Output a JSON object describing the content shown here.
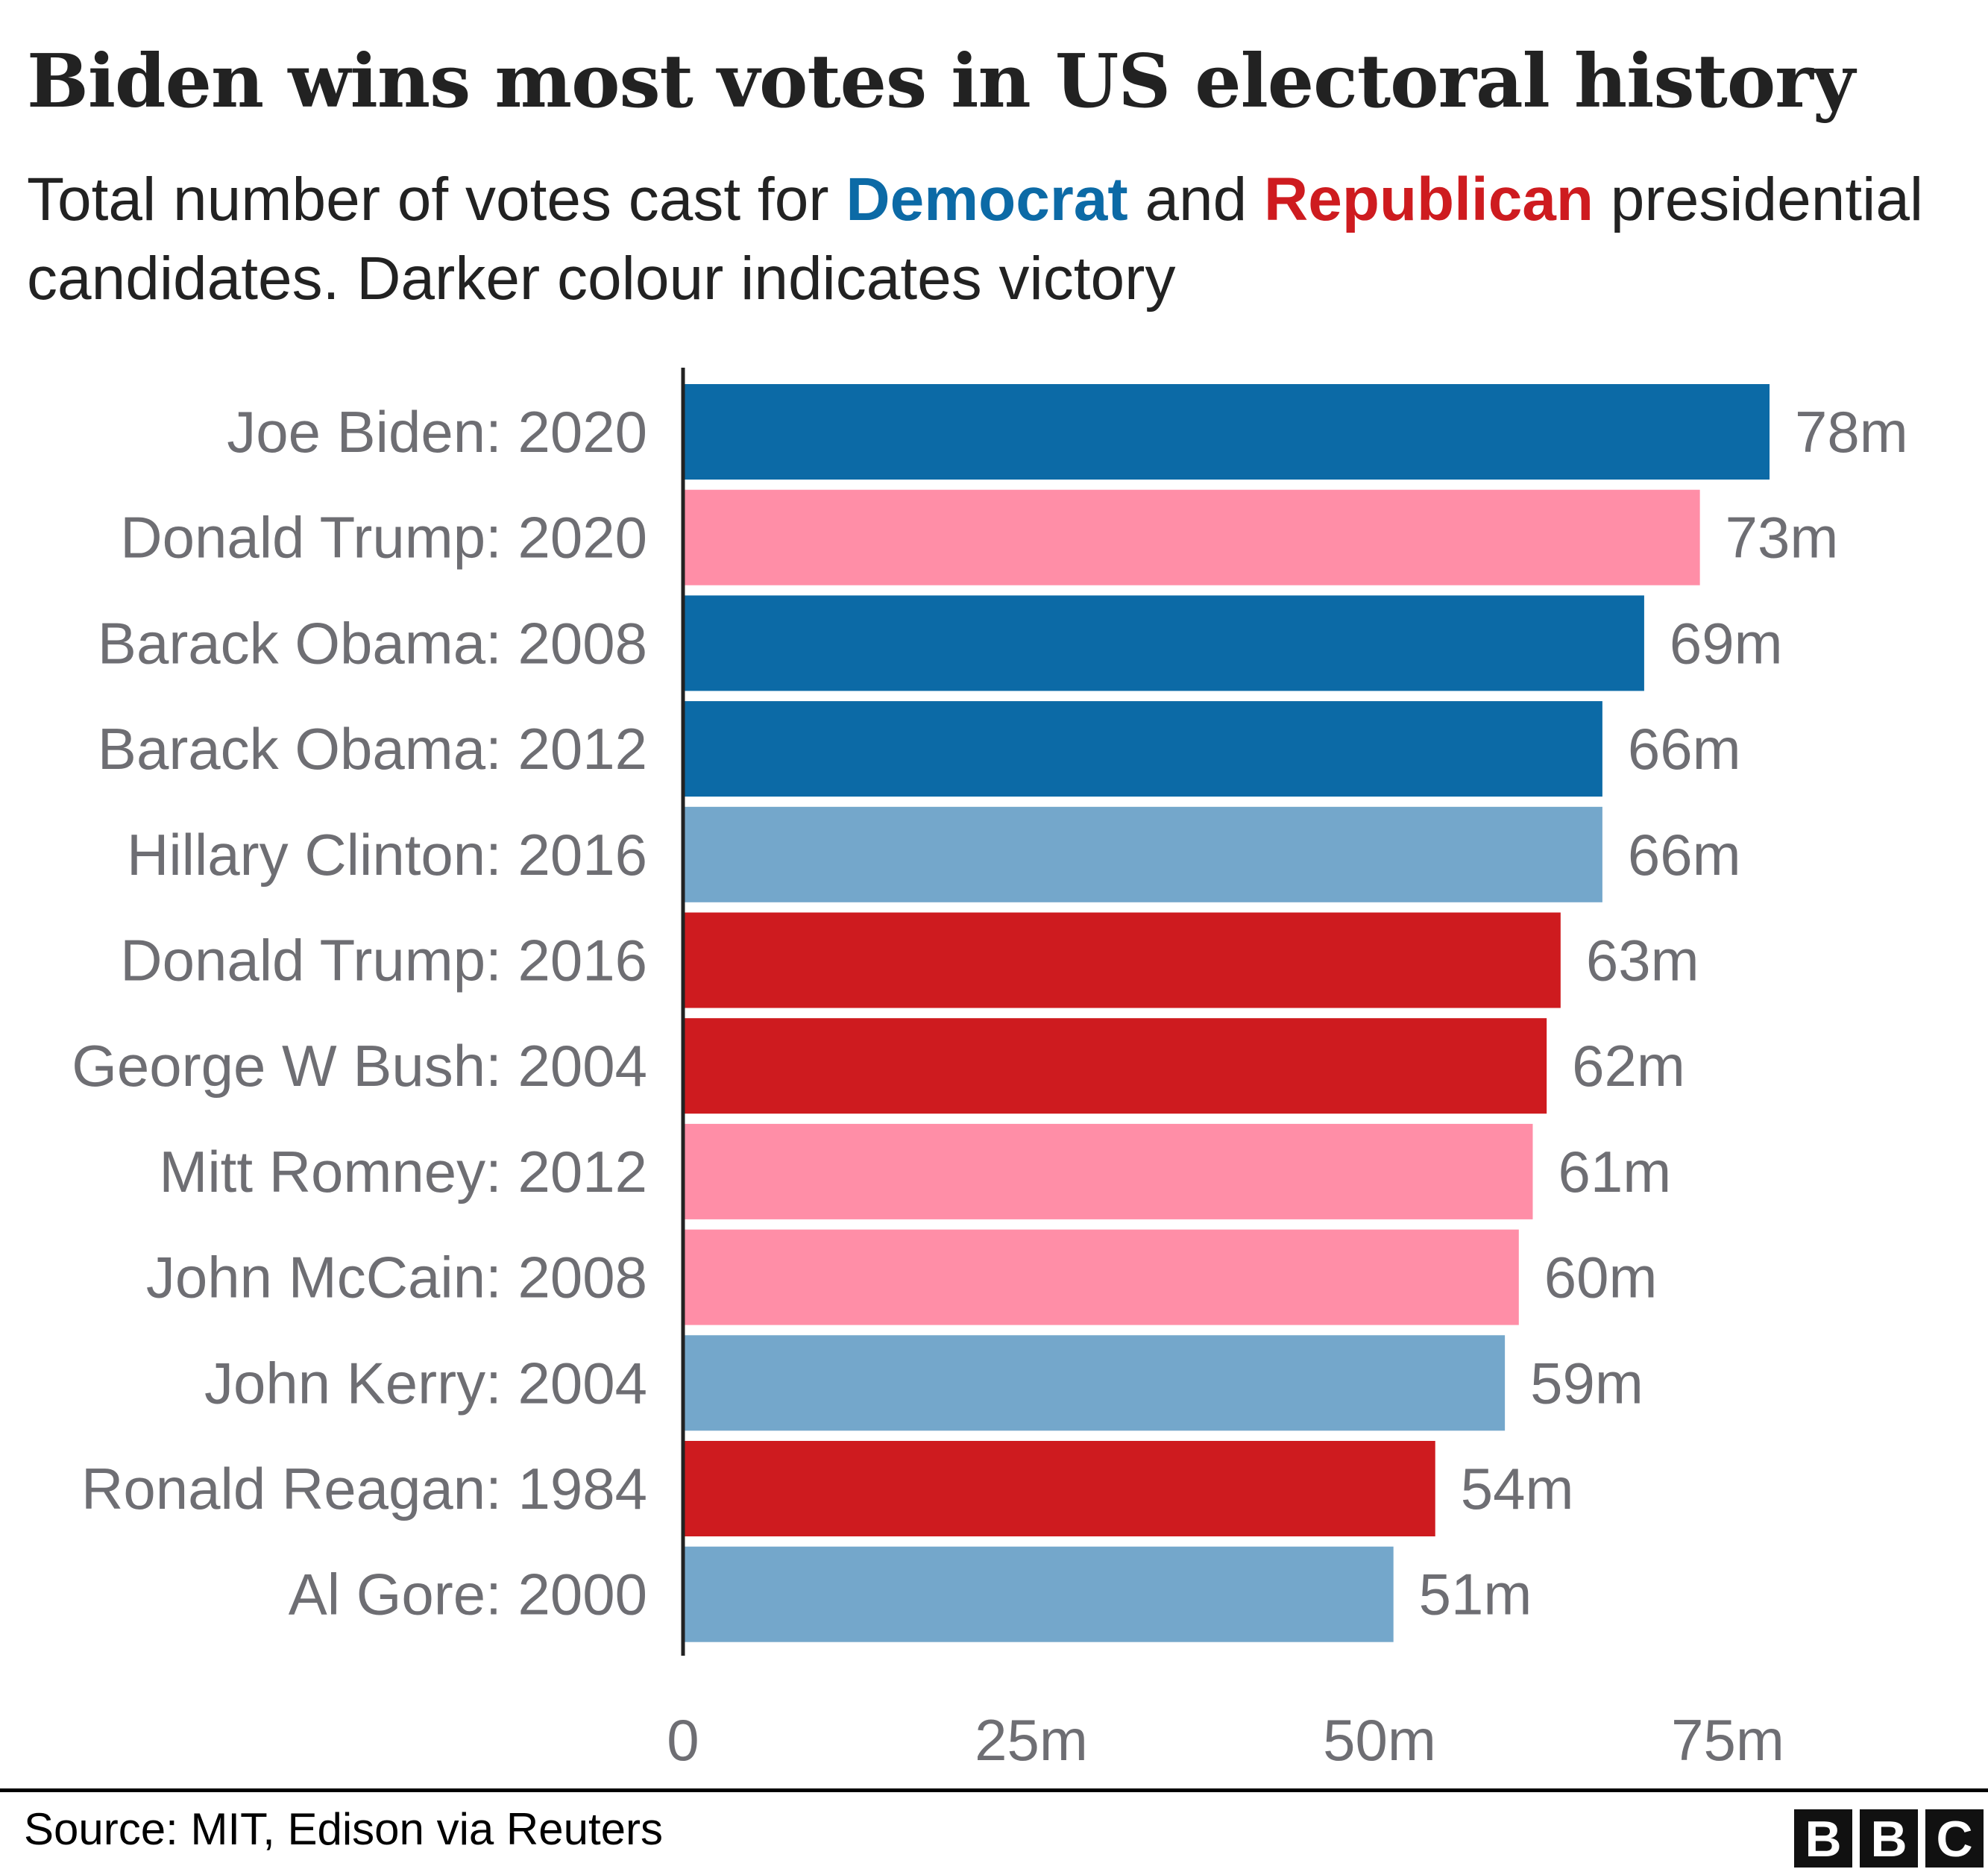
{
  "chart_data": {
    "type": "bar",
    "orientation": "horizontal",
    "title": "Biden wins most votes in US electoral history",
    "subtitle": {
      "prefix": "Total number of votes cast for ",
      "democrat": "Democrat",
      "middle": " and ",
      "republican": "Republican",
      "suffix": " presidential candidates. Darker colour indicates victory"
    },
    "categories": [
      "Joe Biden: 2020",
      "Donald Trump: 2020",
      "Barack Obama: 2008",
      "Barack Obama: 2012",
      "Hillary Clinton: 2016",
      "Donald Trump: 2016",
      "George W Bush: 2004",
      "Mitt Romney: 2012",
      "John McCain: 2008",
      "John Kerry: 2004",
      "Ronald Reagan: 1984",
      "Al Gore: 2000"
    ],
    "values": [
      78,
      73,
      69,
      66,
      66,
      63,
      62,
      61,
      60,
      59,
      54,
      51
    ],
    "value_labels": [
      "78m",
      "73m",
      "69m",
      "66m",
      "66m",
      "63m",
      "62m",
      "61m",
      "60m",
      "59m",
      "54m",
      "51m"
    ],
    "bar_kind": [
      "dem-win",
      "rep-loss",
      "dem-win",
      "dem-win",
      "dem-loss",
      "rep-win",
      "rep-win",
      "rep-loss",
      "rep-loss",
      "dem-loss",
      "rep-win",
      "dem-loss"
    ],
    "unit": "million votes",
    "xlim": [
      0,
      78
    ],
    "x_ticks": [
      0,
      25,
      50,
      75
    ],
    "x_tick_labels": [
      "0",
      "25m",
      "50m",
      "75m"
    ],
    "grid": false,
    "legend": "none",
    "colors": {
      "dem-win": "#0c6aa6",
      "dem-loss": "#74a7cb",
      "rep-win": "#ce1b1f",
      "rep-loss": "#ff8ea7",
      "label_text": "#6e6e73"
    }
  },
  "footer": {
    "source": "Source: MIT, Edison via Reuters",
    "logo_letters": [
      "B",
      "B",
      "C"
    ]
  }
}
